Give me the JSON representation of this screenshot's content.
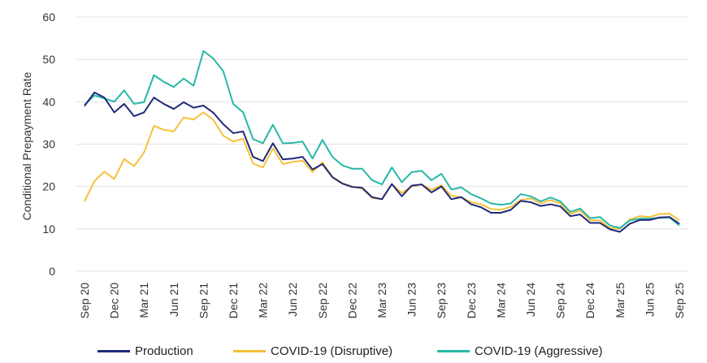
{
  "chart_data": {
    "type": "line",
    "ylabel": "Conditional Prepayment Rate",
    "ylim": [
      0,
      60
    ],
    "yticks": [
      "0",
      "10",
      "20",
      "30",
      "40",
      "50",
      "60"
    ],
    "grid": true,
    "legend_position": "bottom",
    "xtick_labels": [
      "Sep 20",
      "Dec 20",
      "Mar 21",
      "Jun 21",
      "Sep 21",
      "Dec 21",
      "Mar 22",
      "Jun 22",
      "Sep 22",
      "Dec 22",
      "Mar 23",
      "Jun 23",
      "Sep 23",
      "Dec 23",
      "Mar 24",
      "Jun 24",
      "Sep 24",
      "Dec 24",
      "Mar 25",
      "Jun 25",
      "Sep 25"
    ],
    "x": [
      "Sep 20",
      "Oct 20",
      "Nov 20",
      "Dec 20",
      "Jan 21",
      "Feb 21",
      "Mar 21",
      "Apr 21",
      "May 21",
      "Jun 21",
      "Jul 21",
      "Aug 21",
      "Sep 21",
      "Oct 21",
      "Nov 21",
      "Dec 21",
      "Jan 22",
      "Feb 22",
      "Mar 22",
      "Apr 22",
      "May 22",
      "Jun 22",
      "Jul 22",
      "Aug 22",
      "Sep 22",
      "Oct 22",
      "Nov 22",
      "Dec 22",
      "Jan 23",
      "Feb 23",
      "Mar 23",
      "Apr 23",
      "May 23",
      "Jun 23",
      "Jul 23",
      "Aug 23",
      "Sep 23",
      "Oct 23",
      "Nov 23",
      "Dec 23",
      "Jan 24",
      "Feb 24",
      "Mar 24",
      "Apr 24",
      "May 24",
      "Jun 24",
      "Jul 24",
      "Aug 24",
      "Sep 24",
      "Oct 24",
      "Nov 24",
      "Dec 24",
      "Jan 25",
      "Feb 25",
      "Mar 25",
      "Apr 25",
      "May 25",
      "Jun 25",
      "Jul 25",
      "Aug 25",
      "Sep 25"
    ],
    "series": [
      {
        "name": "Production",
        "color": "#1f2a7a",
        "values": [
          39,
          42.2,
          41,
          37.5,
          39.5,
          36.6,
          37.5,
          41,
          39.5,
          38.3,
          39.9,
          38.6,
          39.1,
          37.4,
          34.7,
          32.6,
          33,
          27,
          26,
          30.2,
          26.4,
          26.6,
          27,
          24,
          25.3,
          22.2,
          20.7,
          19.9,
          19.7,
          17.5,
          17,
          20.6,
          17.7,
          20.2,
          20.5,
          18.6,
          20,
          17,
          17.5,
          15.8,
          15.1,
          13.8,
          13.8,
          14.5,
          16.6,
          16.3,
          15.4,
          15.8,
          15.3,
          13,
          13.4,
          11.4,
          11.4,
          9.9,
          9.3,
          11.2,
          12.1,
          12.1,
          12.7,
          12.8,
          11.2
        ]
      },
      {
        "name": "COVID-19 (Disruptive)",
        "color": "#f5c13a",
        "values": [
          16.5,
          21.3,
          23.5,
          21.8,
          26.5,
          24.8,
          28,
          34.3,
          33.4,
          33,
          36.3,
          35.8,
          37.5,
          35.7,
          32,
          30.6,
          31.3,
          25.4,
          24.5,
          29,
          25.3,
          25.8,
          26.1,
          23.4,
          25.7,
          22.3,
          20.8,
          20,
          19.5,
          17.3,
          17,
          20.5,
          18.5,
          20,
          20.5,
          19.2,
          20.3,
          17.8,
          17.5,
          16.3,
          15.8,
          14.7,
          14.5,
          15.2,
          16.8,
          17.2,
          16,
          16.8,
          16,
          13.5,
          14.4,
          12,
          12,
          10.2,
          10,
          12.2,
          13,
          12.8,
          13.5,
          13.6,
          12
        ]
      },
      {
        "name": "COVID-19 (Aggressive)",
        "color": "#27b8a6",
        "values": [
          39.3,
          41.5,
          40.8,
          40,
          42.7,
          39.5,
          39.9,
          46.3,
          44.7,
          43.5,
          45.5,
          43.8,
          52,
          50.2,
          47.2,
          39.5,
          37.5,
          31.2,
          30.2,
          34.6,
          30.2,
          30.3,
          30.6,
          26.6,
          31,
          27,
          25,
          24.2,
          24.2,
          21.5,
          20.5,
          24.5,
          21,
          23.4,
          23.7,
          21.5,
          23,
          19.3,
          19.8,
          18.2,
          17.2,
          16,
          15.7,
          16,
          18.2,
          17.7,
          16.5,
          17.4,
          16.5,
          14,
          14.8,
          12.5,
          12.8,
          10.8,
          10.2,
          12,
          12.4,
          12.4,
          12.6,
          12.7,
          10.8
        ]
      }
    ]
  }
}
